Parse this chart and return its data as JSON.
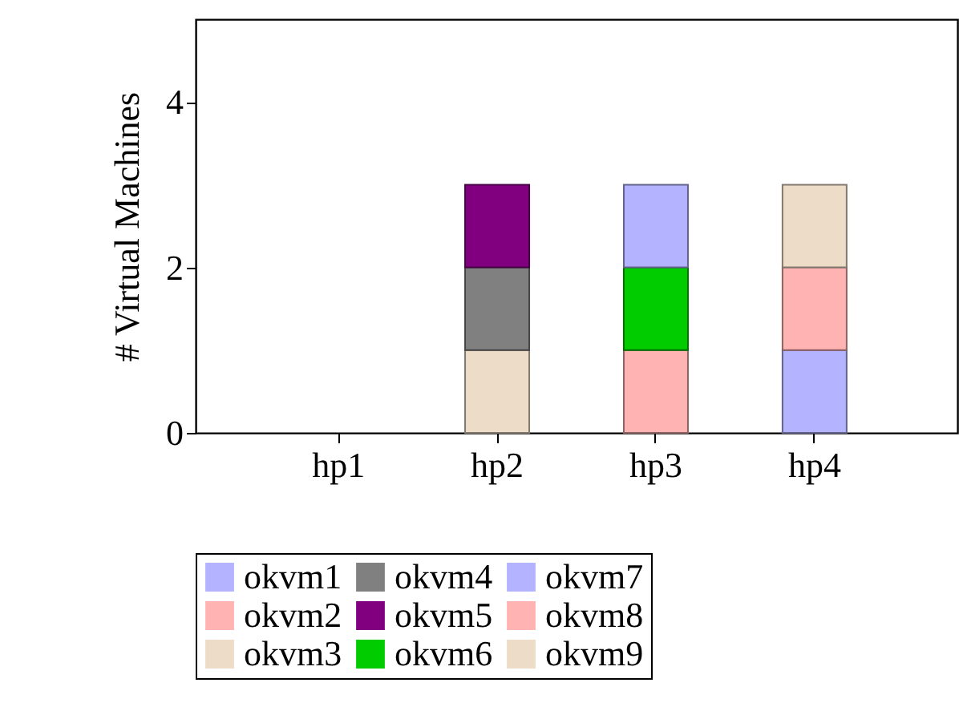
{
  "chart_data": {
    "type": "bar",
    "stacked": true,
    "ylabel": "# Virtual Machines",
    "categories": [
      "hp1",
      "hp2",
      "hp3",
      "hp4"
    ],
    "ylim": [
      0,
      5
    ],
    "yticks": [
      0,
      2,
      4
    ],
    "grid": false,
    "legend": "bottom",
    "series": [
      {
        "name": "okvm1",
        "color": "#b3b3ff",
        "values": [
          null,
          null,
          null,
          null
        ]
      },
      {
        "name": "okvm2",
        "color": "#ffb3b3",
        "values": [
          null,
          null,
          1,
          null
        ]
      },
      {
        "name": "okvm3",
        "color": "#ecdcc8",
        "values": [
          null,
          1,
          null,
          null
        ]
      },
      {
        "name": "okvm4",
        "color": "#808080",
        "values": [
          null,
          1,
          null,
          null
        ]
      },
      {
        "name": "okvm5",
        "color": "#800080",
        "values": [
          null,
          1,
          null,
          null
        ]
      },
      {
        "name": "okvm6",
        "color": "#00cc00",
        "values": [
          null,
          null,
          1,
          null
        ]
      },
      {
        "name": "okvm7",
        "color": "#b3b3ff",
        "values": [
          null,
          null,
          1,
          1
        ]
      },
      {
        "name": "okvm8",
        "color": "#ffb3b3",
        "values": [
          null,
          null,
          null,
          1
        ]
      },
      {
        "name": "okvm9",
        "color": "#ecdcc8",
        "values": [
          null,
          null,
          null,
          1
        ]
      }
    ]
  }
}
